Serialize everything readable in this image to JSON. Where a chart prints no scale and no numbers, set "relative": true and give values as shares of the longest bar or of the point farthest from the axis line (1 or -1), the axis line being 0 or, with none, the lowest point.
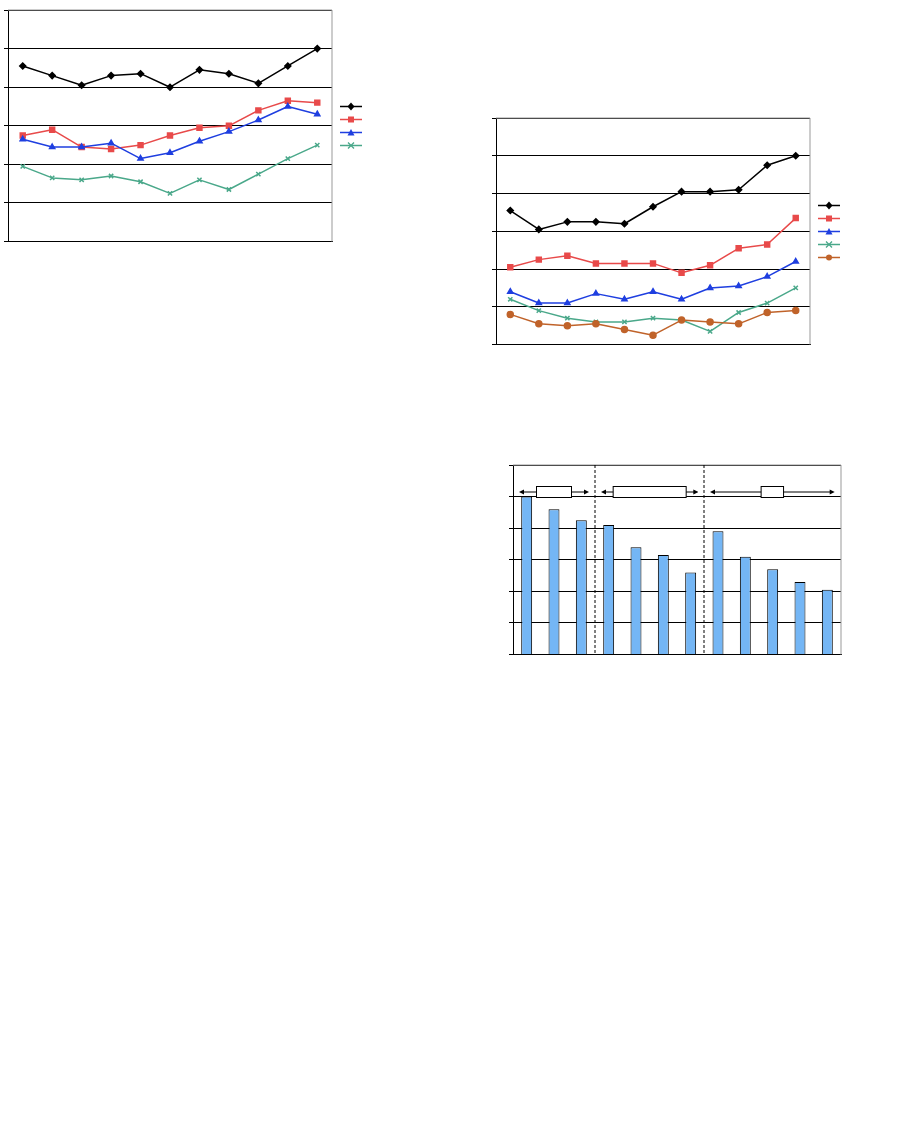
{
  "chart_data": [
    {
      "type": "line",
      "relative": true,
      "grid": "y",
      "categories": [
        null,
        null,
        null,
        null,
        null,
        null,
        null,
        null,
        null,
        null,
        null
      ],
      "series": [
        {
          "color": "#000000",
          "marker": "diamond",
          "values": [
            0.91,
            0.86,
            0.81,
            0.86,
            0.87,
            0.8,
            0.89,
            0.87,
            0.82,
            0.91,
            1
          ]
        },
        {
          "color": "#e84a4a",
          "marker": "square",
          "values": [
            0.55,
            0.58,
            0.49,
            0.48,
            0.5,
            0.55,
            0.59,
            0.6,
            0.68,
            0.73,
            0.72
          ]
        },
        {
          "color": "#1f3fe0",
          "marker": "triangle",
          "values": [
            0.53,
            0.49,
            0.49,
            0.51,
            0.43,
            0.46,
            0.52,
            0.57,
            0.63,
            0.7,
            0.66
          ]
        },
        {
          "color": "#4aa88a",
          "marker": "cross",
          "values": [
            0.39,
            0.33,
            0.32,
            0.34,
            0.31,
            0.25,
            0.32,
            0.27,
            0.35,
            0.43,
            0.5
          ]
        }
      ]
    },
    {
      "type": "line",
      "relative": true,
      "grid": "y",
      "categories": [
        null,
        null,
        null,
        null,
        null,
        null,
        null,
        null,
        null,
        null,
        null
      ],
      "series": [
        {
          "color": "#000000",
          "marker": "diamond",
          "values": [
            0.71,
            0.61,
            0.65,
            0.65,
            0.64,
            0.73,
            0.81,
            0.81,
            0.82,
            0.95,
            1
          ]
        },
        {
          "color": "#e84a4a",
          "marker": "square",
          "values": [
            0.41,
            0.45,
            0.47,
            0.43,
            0.43,
            0.43,
            0.38,
            0.42,
            0.51,
            0.53,
            0.67
          ]
        },
        {
          "color": "#1f3fe0",
          "marker": "triangle",
          "values": [
            0.28,
            0.22,
            0.22,
            0.27,
            0.24,
            0.28,
            0.24,
            0.3,
            0.31,
            0.36,
            0.44
          ]
        },
        {
          "color": "#4aa88a",
          "marker": "cross",
          "values": [
            0.24,
            0.18,
            0.14,
            0.12,
            0.12,
            0.14,
            0.13,
            0.07,
            0.17,
            0.22,
            0.3
          ]
        },
        {
          "color": "#c0632a",
          "marker": "circle",
          "values": [
            0.16,
            0.11,
            0.1,
            0.11,
            0.08,
            0.05,
            0.13,
            0.12,
            0.11,
            0.17,
            0.18
          ]
        }
      ]
    },
    {
      "type": "bar",
      "relative": true,
      "grid": "y",
      "categories": [
        null,
        null,
        null,
        null,
        null,
        null,
        null,
        null,
        null,
        null,
        null,
        null
      ],
      "color": "#74b6f5",
      "values": [
        1,
        0.92,
        0.85,
        0.82,
        0.68,
        0.63,
        0.52,
        0.78,
        0.62,
        0.54,
        0.46,
        0.41
      ]
    }
  ]
}
